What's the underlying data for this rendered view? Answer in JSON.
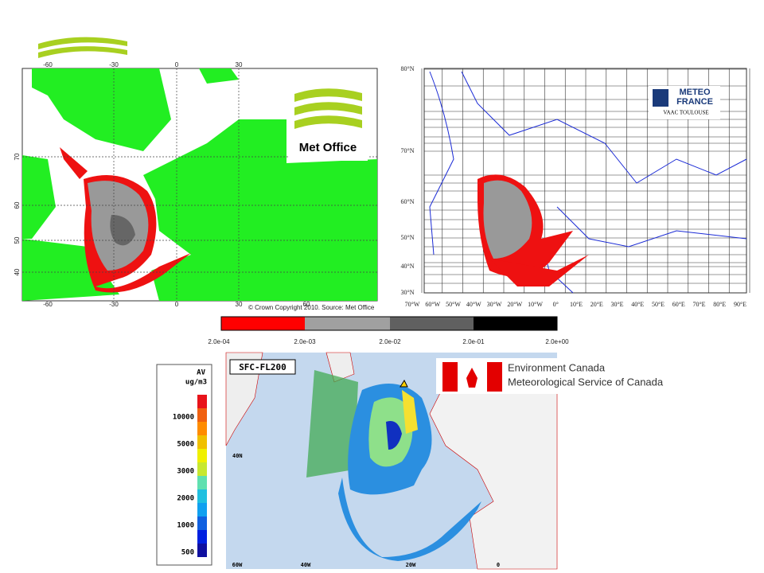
{
  "met_office": {
    "logo": "Met Office",
    "top_ticks": [
      "-60",
      "-30",
      "0",
      "30"
    ],
    "bottom_ticks": [
      "-60",
      "-30",
      "0",
      "30",
      "60"
    ],
    "left_ticks": [
      "70",
      "60",
      "50",
      "40"
    ],
    "copyright": "© Crown Copyright 2010. Source: Met Office"
  },
  "meteo_france": {
    "logo_line1": "METEO",
    "logo_line2": "FRANCE",
    "logo_sub": "VAAC TOULOUSE",
    "lat_labels": [
      "80°N",
      "70°N",
      "60°N",
      "50°N",
      "40°N",
      "30°N"
    ],
    "lon_labels": [
      "70°W",
      "60°W",
      "50°W",
      "40°W",
      "30°W",
      "20°W",
      "10°W",
      "0°",
      "10°E",
      "20°E",
      "30°E",
      "40°E",
      "50°E",
      "60°E",
      "70°E",
      "80°E",
      "90°E"
    ]
  },
  "colorbar": {
    "labels": [
      "2.0e-04",
      "2.0e-03",
      "2.0e-02",
      "2.0e-01",
      "2.0e+00"
    ]
  },
  "environment_canada": {
    "level": "SFC-FL200",
    "org_line1": "Environment Canada",
    "org_line2": "Meteorological Service of Canada",
    "legend_title": "AV",
    "legend_unit": "ug/m3",
    "legend_values": [
      "10000",
      "5000",
      "3000",
      "2000",
      "1000",
      "500"
    ],
    "lon_labels": [
      "60W",
      "40W",
      "20W",
      "0"
    ],
    "lat_label": "40N"
  }
}
